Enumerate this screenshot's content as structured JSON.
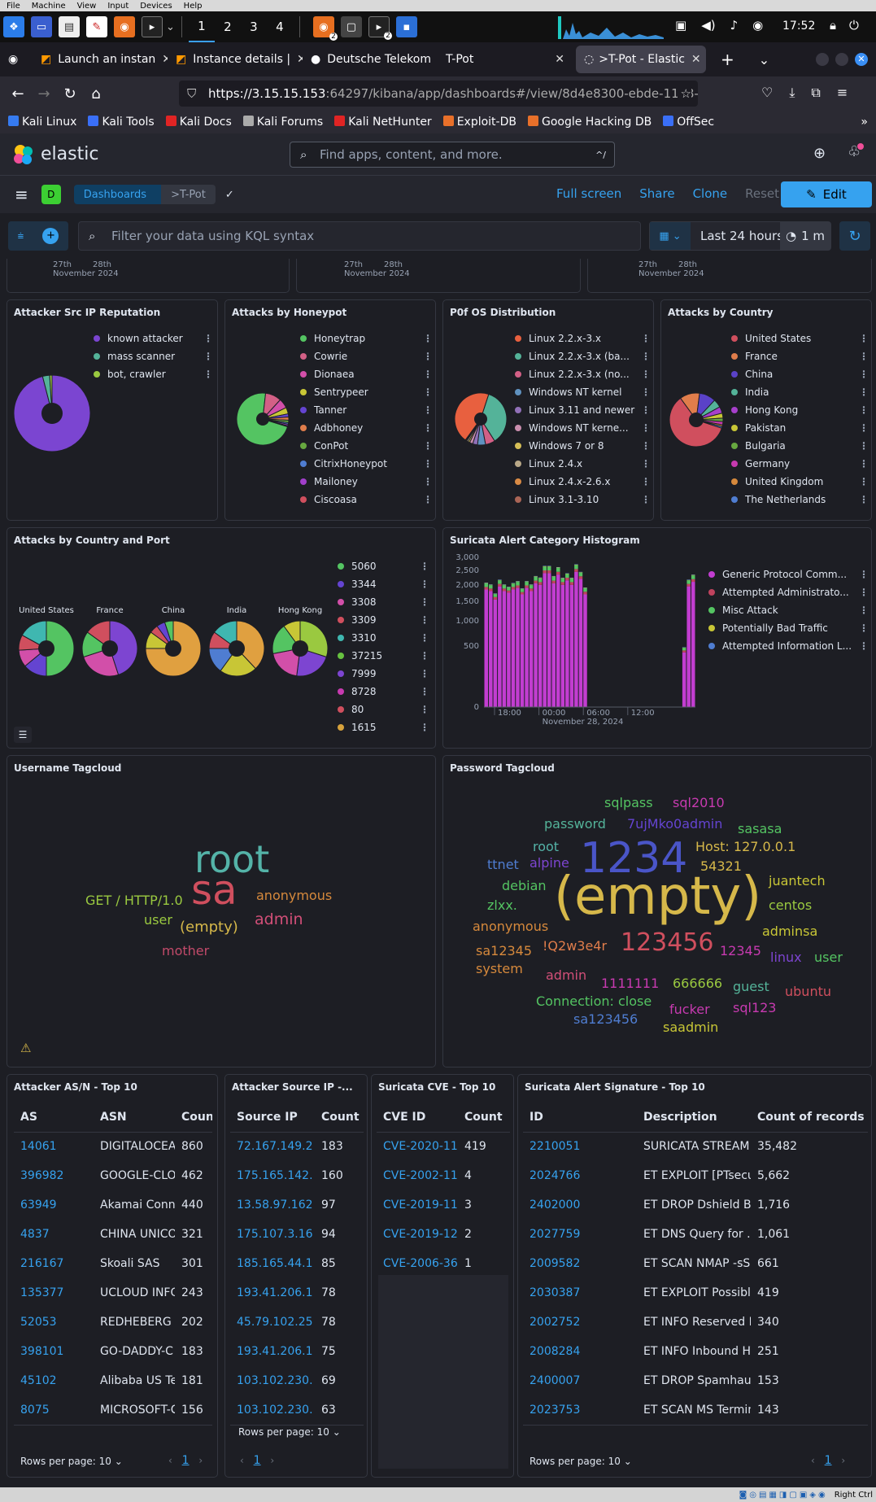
{
  "vm_menu": [
    "File",
    "Machine",
    "View",
    "Input",
    "Devices",
    "Help"
  ],
  "kali": {
    "workspaces": [
      "1",
      "2",
      "3",
      "4"
    ],
    "time": "17:52",
    "badge": "2"
  },
  "tabs": [
    {
      "label": "Launch an instan"
    },
    {
      "label": "Instance details |"
    },
    {
      "label": "Deutsche Telekom"
    },
    {
      "label": "T-Pot"
    },
    {
      "label": ">T-Pot - Elastic"
    }
  ],
  "url": {
    "host": "https://3.15.15.153",
    "rest": ":64297/kibana/app/dashboards#/view/8d4e8300-ebde-11e8-"
  },
  "bookmarks": [
    {
      "label": "Kali Linux",
      "color": "#367bf0"
    },
    {
      "label": "Kali Tools",
      "color": "#3a6ff7"
    },
    {
      "label": "Kali Docs",
      "color": "#e02424"
    },
    {
      "label": "Kali Forums",
      "color": "#aaaaaa"
    },
    {
      "label": "Kali NetHunter",
      "color": "#e02424"
    },
    {
      "label": "Exploit-DB",
      "color": "#e8702a"
    },
    {
      "label": "Google Hacking DB",
      "color": "#e8702a"
    },
    {
      "label": "OffSec",
      "color": "#3a6ff7"
    }
  ],
  "elastic": {
    "logo": "elastic",
    "search_placeholder": "Find apps, content, and more.",
    "search_shortcut": "^/"
  },
  "header": {
    "space": "D",
    "crumb1": "Dashboards",
    "crumb2": ">T-Pot",
    "full_screen": "Full screen",
    "share": "Share",
    "clone": "Clone",
    "reset": "Reset",
    "edit": "Edit"
  },
  "query": {
    "placeholder": "Filter your data using KQL syntax",
    "range": "Last 24 hours",
    "refresh": "1 m"
  },
  "top_axis": {
    "d1": "27th",
    "d2": "28th",
    "month": "November 2024"
  },
  "reputation": {
    "title": "Attacker Src IP Reputation",
    "items": [
      {
        "label": "known attacker",
        "color": "#7b45d1",
        "value": 96
      },
      {
        "label": "mass scanner",
        "color": "#54b399",
        "value": 3
      },
      {
        "label": "bot, crawler",
        "color": "#9ac940",
        "value": 1
      }
    ]
  },
  "honeypot": {
    "title": "Attacks by Honeypot",
    "items": [
      {
        "label": "Honeytrap",
        "color": "#54c462",
        "value": 72
      },
      {
        "label": "Cowrie",
        "color": "#d36086",
        "value": 10
      },
      {
        "label": "Dionaea",
        "color": "#d24fa9",
        "value": 6
      },
      {
        "label": "Sentrypeer",
        "color": "#c8c636",
        "value": 4
      },
      {
        "label": "Tanner",
        "color": "#6444d1",
        "value": 2
      },
      {
        "label": "Adbhoney",
        "color": "#e07d4b",
        "value": 2
      },
      {
        "label": "ConPot",
        "color": "#67a840",
        "value": 1.5
      },
      {
        "label": "CitrixHoneypot",
        "color": "#4f7dd1",
        "value": 1
      },
      {
        "label": "Mailoney",
        "color": "#a13fcb",
        "value": 1
      },
      {
        "label": "Ciscoasa",
        "color": "#d04f5e",
        "value": 0.5
      }
    ]
  },
  "p0f": {
    "title": "P0f OS Distribution",
    "items": [
      {
        "label": "Linux 2.2.x-3.x",
        "color": "#e8603f",
        "value": 45
      },
      {
        "label": "Linux 2.2.x-3.x (ba...",
        "color": "#54b399",
        "value": 36
      },
      {
        "label": "Linux 2.2.x-3.x (no...",
        "color": "#d36086",
        "value": 6
      },
      {
        "label": "Windows NT kernel",
        "color": "#6092c0",
        "value": 5
      },
      {
        "label": "Linux 3.11 and newer",
        "color": "#9170b8",
        "value": 3
      },
      {
        "label": "Windows NT kerne...",
        "color": "#ca8eae",
        "value": 2
      },
      {
        "label": "Windows 7 or 8",
        "color": "#d6bf57",
        "value": 1
      },
      {
        "label": "Linux 2.4.x",
        "color": "#b9a888",
        "value": 1
      },
      {
        "label": "Linux 2.4.x-2.6.x",
        "color": "#da8b45",
        "value": 0.6
      },
      {
        "label": "Linux 3.1-3.10",
        "color": "#aa6556",
        "value": 0.4
      }
    ]
  },
  "country": {
    "title": "Attacks by Country",
    "items": [
      {
        "label": "United States",
        "color": "#d04f5e",
        "value": 60
      },
      {
        "label": "France",
        "color": "#e07d4b",
        "value": 12
      },
      {
        "label": "China",
        "color": "#5a42c8",
        "value": 10
      },
      {
        "label": "India",
        "color": "#54b399",
        "value": 5
      },
      {
        "label": "Hong Kong",
        "color": "#a63fcb",
        "value": 4
      },
      {
        "label": "Pakistan",
        "color": "#c8c636",
        "value": 3
      },
      {
        "label": "Bulgaria",
        "color": "#67a840",
        "value": 2
      },
      {
        "label": "Germany",
        "color": "#c73ab0",
        "value": 2
      },
      {
        "label": "United Kingdom",
        "color": "#d6893c",
        "value": 1
      },
      {
        "label": "The Netherlands",
        "color": "#4f7dd1",
        "value": 1
      }
    ]
  },
  "country_port": {
    "title": "Attacks by Country and Port",
    "countries": [
      {
        "name": "United States",
        "slices": [
          {
            "color": "#54c462",
            "value": 50
          },
          {
            "color": "#6444d1",
            "value": 14
          },
          {
            "color": "#d24fa9",
            "value": 10
          },
          {
            "color": "#d04f5e",
            "value": 9
          },
          {
            "color": "#3fb7b0",
            "value": 17
          }
        ]
      },
      {
        "name": "France",
        "slices": [
          {
            "color": "#7d45d1",
            "value": 45
          },
          {
            "color": "#d24fa9",
            "value": 25
          },
          {
            "color": "#54c462",
            "value": 15
          },
          {
            "color": "#d04f5e",
            "value": 15
          }
        ]
      },
      {
        "name": "China",
        "slices": [
          {
            "color": "#e0a040",
            "value": 75
          },
          {
            "color": "#c8c636",
            "value": 10
          },
          {
            "color": "#d04f5e",
            "value": 5
          },
          {
            "color": "#6444d1",
            "value": 5
          },
          {
            "color": "#54c462",
            "value": 5
          }
        ]
      },
      {
        "name": "India",
        "slices": [
          {
            "color": "#e0a040",
            "value": 38
          },
          {
            "color": "#c8c636",
            "value": 22
          },
          {
            "color": "#4f7dd1",
            "value": 15
          },
          {
            "color": "#d04f5e",
            "value": 10
          },
          {
            "color": "#3fb7b0",
            "value": 15
          }
        ]
      },
      {
        "name": "Hong Kong",
        "slices": [
          {
            "color": "#9ac940",
            "value": 30
          },
          {
            "color": "#7d45d1",
            "value": 22
          },
          {
            "color": "#d24fa9",
            "value": 20
          },
          {
            "color": "#54c462",
            "value": 18
          },
          {
            "color": "#c8c636",
            "value": 10
          }
        ]
      }
    ],
    "ports": [
      {
        "label": "5060",
        "color": "#54c462"
      },
      {
        "label": "3344",
        "color": "#6444d1"
      },
      {
        "label": "3308",
        "color": "#d24fa9"
      },
      {
        "label": "3309",
        "color": "#d04f5e"
      },
      {
        "label": "3310",
        "color": "#3fb7b0"
      },
      {
        "label": "37215",
        "color": "#67c240"
      },
      {
        "label": "7999",
        "color": "#7d45d1"
      },
      {
        "label": "8728",
        "color": "#c73ab0"
      },
      {
        "label": "80",
        "color": "#d04f5e"
      },
      {
        "label": "1615",
        "color": "#d6a23c"
      }
    ]
  },
  "chart_data": {
    "type": "bar",
    "title": "Suricata Alert Category Histogram",
    "stacked": true,
    "xlabel": "",
    "ylabel": "",
    "x_ticks": [
      "18:00",
      "00:00",
      "06:00",
      "12:00"
    ],
    "x_subtitle": "November 28, 2024",
    "y_ticks": [
      0,
      500,
      1000,
      1500,
      2000,
      2500,
      3000
    ],
    "y_tick_labels": [
      "0",
      "500",
      "1,000",
      "1,500",
      "2,000",
      "2,500",
      "3,000"
    ],
    "ylim": [
      0,
      3000
    ],
    "series": [
      {
        "name": "Generic Protocol Comm...",
        "color": "#c23dd0",
        "values": [
          1850,
          1800,
          1550,
          1950,
          1800,
          1750,
          1850,
          1900,
          1700,
          1900,
          1800,
          2050,
          2000,
          2400,
          2400,
          2050,
          2350,
          2000,
          2150,
          2000,
          2450,
          2200,
          1700,
          0,
          0,
          0,
          0,
          0,
          0,
          0,
          0,
          0,
          0,
          0,
          0,
          0,
          0,
          0,
          0,
          0,
          0,
          0,
          0,
          0,
          400,
          1950,
          2100
        ]
      },
      {
        "name": "Attempted Administrato...",
        "color": "#c0435e",
        "values": [
          80,
          80,
          70,
          80,
          80,
          70,
          80,
          80,
          70,
          80,
          80,
          90,
          90,
          100,
          100,
          90,
          100,
          90,
          90,
          90,
          100,
          90,
          80,
          0,
          0,
          0,
          0,
          0,
          0,
          0,
          0,
          0,
          0,
          0,
          0,
          0,
          0,
          0,
          0,
          0,
          0,
          0,
          0,
          0,
          30,
          80,
          90
        ]
      },
      {
        "name": "Misc Attack",
        "color": "#54c462",
        "values": [
          120,
          110,
          90,
          120,
          110,
          100,
          110,
          120,
          100,
          120,
          110,
          130,
          130,
          140,
          140,
          130,
          140,
          120,
          130,
          120,
          150,
          130,
          110,
          0,
          0,
          0,
          0,
          0,
          0,
          0,
          0,
          0,
          0,
          0,
          0,
          0,
          0,
          0,
          0,
          0,
          0,
          0,
          0,
          0,
          40,
          120,
          130
        ]
      },
      {
        "name": "Potentially Bad Traffic",
        "color": "#c8c636",
        "values": [
          15,
          15,
          12,
          15,
          15,
          12,
          15,
          15,
          12,
          15,
          15,
          18,
          18,
          20,
          20,
          18,
          20,
          18,
          18,
          18,
          20,
          18,
          15,
          0,
          0,
          0,
          0,
          0,
          0,
          0,
          0,
          0,
          0,
          0,
          0,
          0,
          0,
          0,
          0,
          0,
          0,
          0,
          0,
          0,
          6,
          15,
          18
        ]
      },
      {
        "name": "Attempted Information L...",
        "color": "#4f7dd1",
        "values": [
          10,
          10,
          8,
          10,
          10,
          8,
          10,
          10,
          8,
          10,
          10,
          12,
          12,
          12,
          12,
          12,
          12,
          10,
          10,
          10,
          12,
          10,
          10,
          0,
          0,
          0,
          0,
          0,
          0,
          0,
          0,
          0,
          0,
          0,
          0,
          0,
          0,
          0,
          0,
          0,
          0,
          0,
          0,
          0,
          4,
          10,
          12
        ]
      }
    ]
  },
  "username_cloud": {
    "title": "Username Tagcloud",
    "tags": [
      {
        "text": "root",
        "color": "#54b3a8"
      },
      {
        "text": "sa",
        "color": "#d04f5e"
      },
      {
        "text": "GET / HTTP/1.0",
        "color": "#9ac940"
      },
      {
        "text": "anonymous",
        "color": "#d6893c"
      },
      {
        "text": "user",
        "color": "#9ac940"
      },
      {
        "text": "(empty)",
        "color": "#d6b84a"
      },
      {
        "text": "admin",
        "color": "#d24f78"
      },
      {
        "text": "mother",
        "color": "#c24a6a"
      }
    ]
  },
  "password_cloud": {
    "title": "Password Tagcloud",
    "tags": [
      {
        "text": "sqlpass",
        "color": "#54c462"
      },
      {
        "text": "sql2010",
        "color": "#c73ab0"
      },
      {
        "text": "password",
        "color": "#54b399"
      },
      {
        "text": "7ujMko0admin",
        "color": "#6444d1"
      },
      {
        "text": "sasasa",
        "color": "#54c462"
      },
      {
        "text": "root",
        "color": "#54b3a8"
      },
      {
        "text": "1234",
        "color": "#4a55c8"
      },
      {
        "text": "Host: 127.0.0.1",
        "color": "#d6b84a"
      },
      {
        "text": "ttnet",
        "color": "#4f7dd1"
      },
      {
        "text": "alpine",
        "color": "#7d45d1"
      },
      {
        "text": "54321",
        "color": "#d6b84a"
      },
      {
        "text": "juantech",
        "color": "#c8c636"
      },
      {
        "text": "debian",
        "color": "#54c462"
      },
      {
        "text": "(empty)",
        "color": "#d6b84a"
      },
      {
        "text": "centos",
        "color": "#9ac940"
      },
      {
        "text": "zlxx.",
        "color": "#54c462"
      },
      {
        "text": "anonymous",
        "color": "#d6893c"
      },
      {
        "text": "adminsa",
        "color": "#c8c636"
      },
      {
        "text": "sa12345",
        "color": "#d6893c"
      },
      {
        "text": "!Q2w3e4r",
        "color": "#e07d4b"
      },
      {
        "text": "123456",
        "color": "#d04f5e"
      },
      {
        "text": "12345",
        "color": "#c73ab0"
      },
      {
        "text": "linux",
        "color": "#7d45d1"
      },
      {
        "text": "user",
        "color": "#54c462"
      },
      {
        "text": "system",
        "color": "#d6893c"
      },
      {
        "text": "admin",
        "color": "#d24f78"
      },
      {
        "text": "1111111",
        "color": "#c73ab0"
      },
      {
        "text": "666666",
        "color": "#9ac940"
      },
      {
        "text": "guest",
        "color": "#54b399"
      },
      {
        "text": "ubuntu",
        "color": "#d04f5e"
      },
      {
        "text": "Connection: close",
        "color": "#54c462"
      },
      {
        "text": "fucker",
        "color": "#c73ab0"
      },
      {
        "text": "sql123",
        "color": "#c73ab0"
      },
      {
        "text": "sa123456",
        "color": "#4f7dd1"
      },
      {
        "text": "saadmin",
        "color": "#c8c636"
      }
    ]
  },
  "asn": {
    "title": "Attacker AS/N - Top 10",
    "headers": [
      "AS",
      "ASN",
      "Coun"
    ],
    "rows": [
      [
        "14061",
        "DIGITALOCEAN",
        "860"
      ],
      [
        "396982",
        "GOOGLE-CLO",
        "462"
      ],
      [
        "63949",
        "Akamai Conne",
        "440"
      ],
      [
        "4837",
        "CHINA UNICO",
        "321"
      ],
      [
        "216167",
        "Skoali SAS",
        "301"
      ],
      [
        "135377",
        "UCLOUD INFO",
        "243"
      ],
      [
        "52053",
        "REDHEBERG A",
        "202"
      ],
      [
        "398101",
        "GO-DADDY-C",
        "183"
      ],
      [
        "45102",
        "Alibaba US Te",
        "181"
      ],
      [
        "8075",
        "MICROSOFT-C",
        "156"
      ]
    ],
    "rows_per_page": "Rows per page: 10",
    "page": "1"
  },
  "srcip": {
    "title": "Attacker Source IP -...",
    "headers": [
      "Source IP",
      "Count"
    ],
    "rows": [
      [
        "72.167.149.2",
        "183"
      ],
      [
        "175.165.142.",
        "160"
      ],
      [
        "13.58.97.162",
        "97"
      ],
      [
        "175.107.3.16",
        "94"
      ],
      [
        "185.165.44.1",
        "85"
      ],
      [
        "193.41.206.1",
        "78"
      ],
      [
        "45.79.102.25",
        "78"
      ],
      [
        "193.41.206.1",
        "75"
      ],
      [
        "103.102.230.",
        "69"
      ],
      [
        "103.102.230.",
        "63"
      ]
    ],
    "rows_per_page": "Rows per page: 10",
    "page": "1"
  },
  "cve": {
    "title": "Suricata CVE - Top 10",
    "headers": [
      "CVE ID",
      "Count"
    ],
    "rows": [
      [
        "CVE-2020-11",
        "419"
      ],
      [
        "CVE-2002-11",
        "4"
      ],
      [
        "CVE-2019-11",
        "3"
      ],
      [
        "CVE-2019-12",
        "2"
      ],
      [
        "CVE-2006-36",
        "1"
      ]
    ]
  },
  "sig": {
    "title": "Suricata Alert Signature - Top 10",
    "headers": [
      "ID",
      "Description",
      "Count of records"
    ],
    "rows": [
      [
        "2210051",
        "SURICATA STREAM",
        "35,482"
      ],
      [
        "2024766",
        "ET EXPLOIT [PTsecu",
        "5,662"
      ],
      [
        "2402000",
        "ET DROP Dshield Blo",
        "1,716"
      ],
      [
        "2027759",
        "ET DNS Query for .c",
        "1,061"
      ],
      [
        "2009582",
        "ET SCAN NMAP -sS",
        "661"
      ],
      [
        "2030387",
        "ET EXPLOIT Possible",
        "419"
      ],
      [
        "2002752",
        "ET INFO Reserved In",
        "340"
      ],
      [
        "2008284",
        "ET INFO Inbound HT",
        "251"
      ],
      [
        "2400007",
        "ET DROP Spamhaus",
        "153"
      ],
      [
        "2023753",
        "ET SCAN MS Termin",
        "143"
      ]
    ],
    "rows_per_page": "Rows per page: 10",
    "page": "1"
  },
  "vm_status": "Right Ctrl"
}
